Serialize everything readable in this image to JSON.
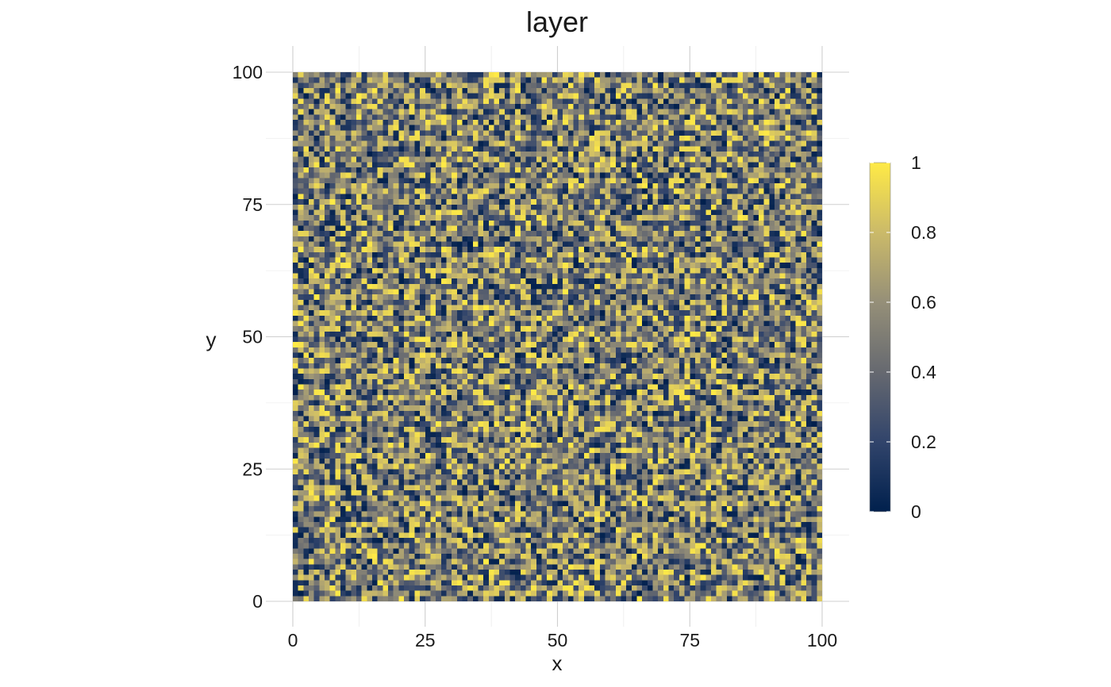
{
  "chart_data": {
    "type": "heatmap",
    "title": "layer",
    "xlabel": "x",
    "ylabel": "y",
    "xlim": [
      0,
      100
    ],
    "ylim": [
      0,
      100
    ],
    "grid_resolution": [
      100,
      100
    ],
    "x_ticks": [
      0,
      25,
      50,
      75,
      100
    ],
    "y_ticks": [
      0,
      25,
      50,
      75,
      100
    ],
    "x_tick_labels": [
      "0",
      "25",
      "50",
      "75",
      "100"
    ],
    "y_tick_labels": [
      "0",
      "25",
      "50",
      "75",
      "100"
    ],
    "value_range": [
      0,
      1
    ],
    "values_description": "uniform random noise",
    "colorscale": [
      "#00204D",
      "#31446B",
      "#666970",
      "#958F78",
      "#CBBA69",
      "#FFEA46"
    ],
    "colorbar": {
      "ticks": [
        0,
        0.2,
        0.4,
        0.6,
        0.8,
        1
      ],
      "tick_labels": [
        "0",
        "0.2",
        "0.4",
        "0.6",
        "0.8",
        "1"
      ],
      "placement": "right"
    },
    "grid": true
  }
}
